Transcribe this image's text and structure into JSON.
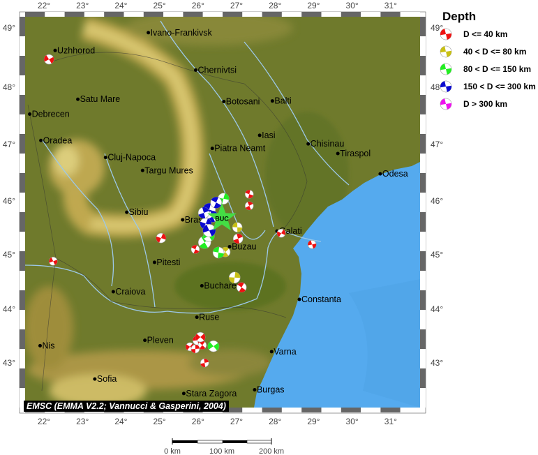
{
  "map": {
    "lon_ticks": [
      "22°",
      "23°",
      "24°",
      "25°",
      "26°",
      "27°",
      "28°",
      "29°",
      "30°",
      "31°"
    ],
    "lat_ticks": [
      "49°",
      "48°",
      "47°",
      "46°",
      "45°",
      "44°",
      "43°"
    ],
    "credit": "EMSC (EMMA V2.2; Vannucci & Gasperini, 2004)",
    "station_label": "BUC",
    "station": {
      "lon": 26.62,
      "lat": 45.68,
      "color": "#44dd44"
    },
    "cities": [
      {
        "name": "Uzhhorod",
        "lon": 22.29,
        "lat": 48.62
      },
      {
        "name": "Ivano-Frankivsk",
        "lon": 24.71,
        "lat": 48.92
      },
      {
        "name": "Chernivtsi",
        "lon": 25.94,
        "lat": 48.29
      },
      {
        "name": "Satu Mare",
        "lon": 22.88,
        "lat": 47.79
      },
      {
        "name": "Debrecen",
        "lon": 21.63,
        "lat": 47.53
      },
      {
        "name": "Botosani",
        "lon": 26.67,
        "lat": 47.75
      },
      {
        "name": "Balti",
        "lon": 27.93,
        "lat": 47.76
      },
      {
        "name": "Iasi",
        "lon": 27.6,
        "lat": 47.16
      },
      {
        "name": "Oradea",
        "lon": 21.92,
        "lat": 47.07
      },
      {
        "name": "Cluj-Napoca",
        "lon": 23.6,
        "lat": 46.77
      },
      {
        "name": "Piatra Neamt",
        "lon": 26.37,
        "lat": 46.93
      },
      {
        "name": "Chisinau",
        "lon": 28.86,
        "lat": 47.01
      },
      {
        "name": "Tiraspol",
        "lon": 29.63,
        "lat": 46.84
      },
      {
        "name": "Targu Mures",
        "lon": 24.56,
        "lat": 46.54
      },
      {
        "name": "Odesa",
        "lon": 30.73,
        "lat": 46.48
      },
      {
        "name": "Sibiu",
        "lon": 24.15,
        "lat": 45.79
      },
      {
        "name": "Brasov",
        "lon": 25.6,
        "lat": 45.65
      },
      {
        "name": "Galati",
        "lon": 28.05,
        "lat": 45.44
      },
      {
        "name": "Buzau",
        "lon": 26.82,
        "lat": 45.15
      },
      {
        "name": "Pitesti",
        "lon": 24.87,
        "lat": 44.86
      },
      {
        "name": "Bucharest",
        "lon": 26.1,
        "lat": 44.43
      },
      {
        "name": "Craiova",
        "lon": 23.8,
        "lat": 44.32
      },
      {
        "name": "Constanta",
        "lon": 28.63,
        "lat": 44.18
      },
      {
        "name": "Ruse",
        "lon": 25.97,
        "lat": 43.85
      },
      {
        "name": "Nis",
        "lon": 21.9,
        "lat": 43.32
      },
      {
        "name": "Pleven",
        "lon": 24.62,
        "lat": 43.42
      },
      {
        "name": "Varna",
        "lon": 27.91,
        "lat": 43.21
      },
      {
        "name": "Sofia",
        "lon": 23.32,
        "lat": 42.7
      },
      {
        "name": "Stara Zagora",
        "lon": 25.63,
        "lat": 42.43
      },
      {
        "name": "Burgas",
        "lon": 27.47,
        "lat": 42.5
      }
    ],
    "events": [
      {
        "lon": 22.13,
        "lat": 48.47,
        "depth": 0
      },
      {
        "lon": 27.33,
        "lat": 46.12,
        "depth": 0
      },
      {
        "lon": 27.33,
        "lat": 45.91,
        "depth": 0
      },
      {
        "lon": 25.04,
        "lat": 45.31,
        "depth": 0
      },
      {
        "lon": 22.24,
        "lat": 44.88,
        "depth": 0
      },
      {
        "lon": 25.93,
        "lat": 45.1,
        "depth": 0
      },
      {
        "lon": 27.04,
        "lat": 45.3,
        "depth": 0
      },
      {
        "lon": 28.16,
        "lat": 45.4,
        "depth": 0
      },
      {
        "lon": 28.96,
        "lat": 45.19,
        "depth": 0
      },
      {
        "lon": 27.13,
        "lat": 44.4,
        "depth": 0
      },
      {
        "lon": 26.17,
        "lat": 43.0,
        "depth": 0
      },
      {
        "lon": 25.79,
        "lat": 43.3,
        "depth": 0
      },
      {
        "lon": 25.99,
        "lat": 43.42,
        "depth": 0
      },
      {
        "lon": 26.11,
        "lat": 43.33,
        "depth": 0
      },
      {
        "lon": 25.93,
        "lat": 43.26,
        "depth": 0
      },
      {
        "lon": 26.06,
        "lat": 43.48,
        "depth": 0
      },
      {
        "lon": 27.02,
        "lat": 45.51,
        "depth": 1
      },
      {
        "lon": 26.71,
        "lat": 45.05,
        "depth": 1
      },
      {
        "lon": 26.95,
        "lat": 44.58,
        "depth": 1
      },
      {
        "lon": 26.4,
        "lat": 43.31,
        "depth": 2
      },
      {
        "lon": 26.53,
        "lat": 45.04,
        "depth": 2
      },
      {
        "lon": 26.17,
        "lat": 45.23,
        "depth": 2
      },
      {
        "lon": 26.66,
        "lat": 46.04,
        "depth": 2
      },
      {
        "lon": 26.28,
        "lat": 45.35,
        "depth": 2
      },
      {
        "lon": 26.29,
        "lat": 45.84,
        "depth": 3
      },
      {
        "lon": 26.38,
        "lat": 45.71,
        "depth": 3
      },
      {
        "lon": 26.2,
        "lat": 45.58,
        "depth": 3
      },
      {
        "lon": 26.29,
        "lat": 45.45,
        "depth": 3
      },
      {
        "lon": 26.47,
        "lat": 45.97,
        "depth": 3
      },
      {
        "lon": 26.15,
        "lat": 45.78,
        "depth": 3
      }
    ]
  },
  "legend": {
    "title": "Depth",
    "items": [
      {
        "label": "D <= 40 km",
        "color": "#ee1111"
      },
      {
        "label": "40 < D <= 80 km",
        "color": "#c8c014"
      },
      {
        "label": "80 < D <= 150 km",
        "color": "#22ee22"
      },
      {
        "label": "150 < D <= 300 km",
        "color": "#0a0ad0"
      },
      {
        "label": "D > 300 km",
        "color": "#ee11ee"
      }
    ]
  },
  "scale": {
    "labels": [
      "0 km",
      "100 km",
      "200 km"
    ]
  }
}
